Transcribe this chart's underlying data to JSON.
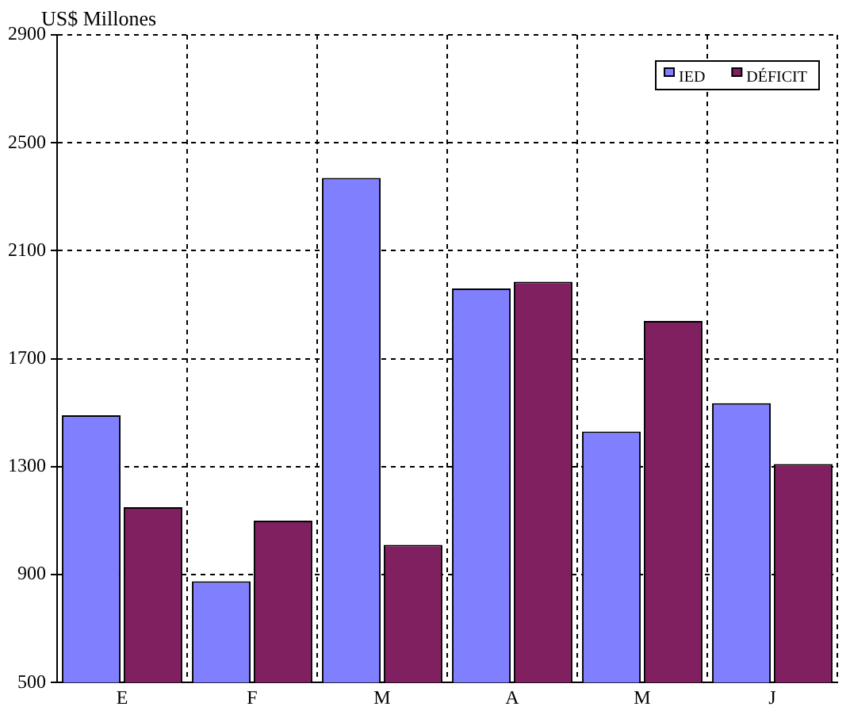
{
  "chart_data": {
    "type": "bar",
    "ylabel": "US$ Millones",
    "categories": [
      "E",
      "F",
      "M",
      "A",
      "M",
      "J"
    ],
    "series": [
      {
        "name": "IED",
        "color": "#8080ff",
        "values": [
          1490,
          875,
          2370,
          1960,
          1430,
          1535
        ]
      },
      {
        "name": "DÉFICIT",
        "color": "#802060",
        "values": [
          1150,
          1100,
          1010,
          1985,
          1840,
          1310
        ]
      }
    ],
    "ylim": [
      500,
      2900
    ],
    "yticks": [
      500,
      900,
      1300,
      1700,
      2100,
      2500,
      2900
    ],
    "grid": true,
    "legend": "top right"
  }
}
